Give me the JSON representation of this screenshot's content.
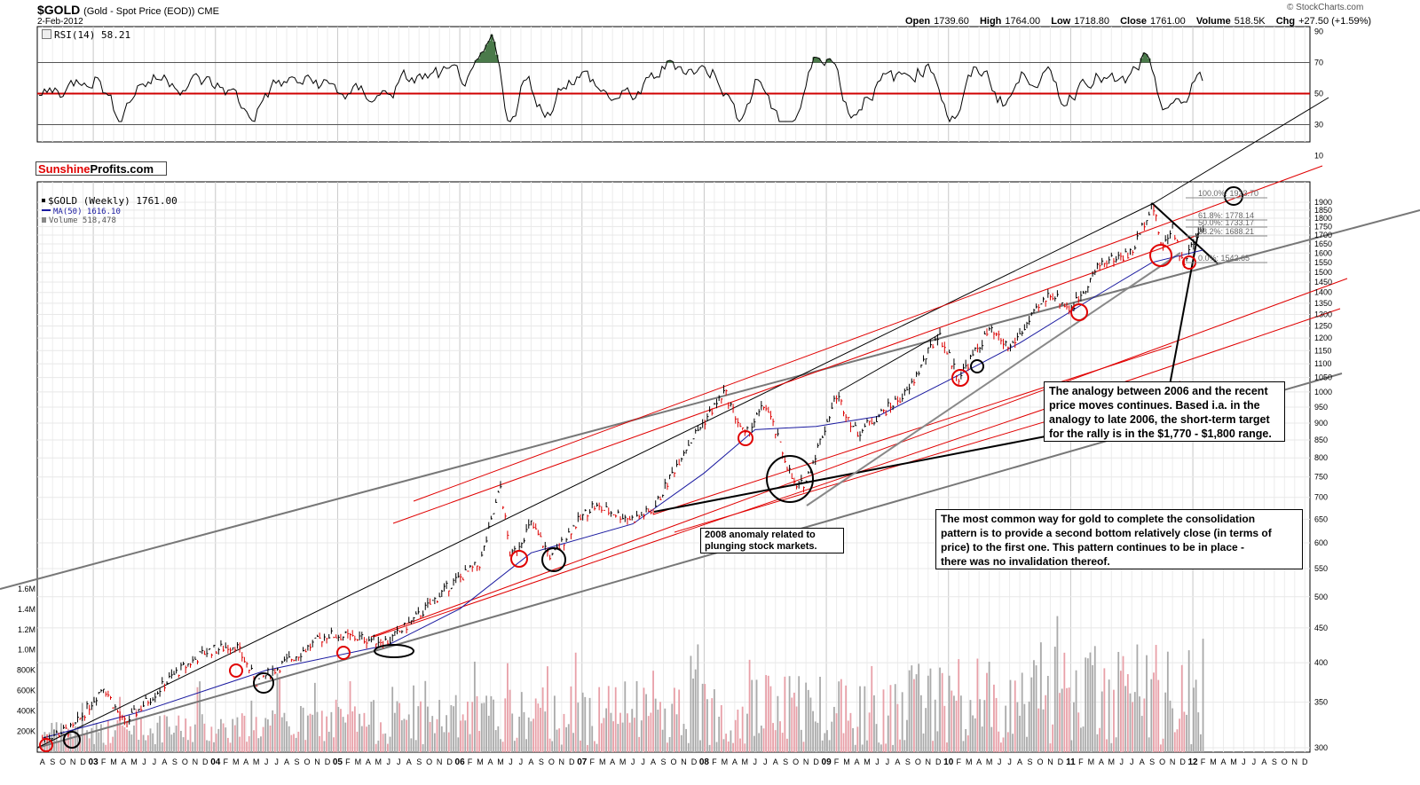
{
  "header": {
    "ticker": "$GOLD",
    "subtitle": "(Gold - Spot Price (EOD)) CME",
    "date": "2-Feb-2012",
    "quote": [
      {
        "label": "Open",
        "value": "1739.60"
      },
      {
        "label": "High",
        "value": "1764.00"
      },
      {
        "label": "Low",
        "value": "1718.80"
      },
      {
        "label": "Close",
        "value": "1761.00"
      },
      {
        "label": "Volume",
        "value": "518.5K"
      },
      {
        "label": "Chg",
        "value": "+27.50 (+1.59%)"
      }
    ],
    "brand": "© StockCharts.com"
  },
  "rsi": {
    "label": "RSI(14) 58.21",
    "axis_ticks": [
      "90",
      "70",
      "50",
      "30",
      "10"
    ]
  },
  "logo": {
    "part1": "Sunshine",
    "part2": "Profits.com"
  },
  "price_legend": {
    "items": [
      {
        "text": "$GOLD (Weekly) 1761.00",
        "color": "#000000"
      },
      {
        "text": "MA(50) 1616.10",
        "color": "#1a1aa0"
      },
      {
        "text": "Volume 518,478",
        "color": "#888888"
      }
    ]
  },
  "notes": {
    "analogy": "The analogy between 2006 and the recent\nprice moves continues. Based i.a. in the\nanalogy to late 2006, the short-term target\nfor the rally is in the $1,770 - $1,800 range.",
    "consolidation": "The most common way for gold to complete the consolidation\npattern is to provide a second bottom relatively close (in terms of\nprice) to the first one. This pattern continues to be in place -\nthere was no invalidation thereof.",
    "anomaly": "2008 anomaly related to\nplunging stock markets."
  },
  "fib_labels": [
    "100.0%: 1923.70",
    "61.8%: 1778.14",
    "50.0%: 1733.17",
    "38.2%: 1688.21",
    "0.0%: 1542.65"
  ],
  "colors": {
    "price": "#000000",
    "down_bar": "#dd0000",
    "ma": "#1a1aa0",
    "channel_red": "#e00000",
    "channel_grey": "#888888",
    "rsi_fill": "#4a7a4a",
    "vol_up": "#aaaaaa",
    "vol_down": "#e8a0a8"
  },
  "chart_data": {
    "type": "line",
    "title": "$GOLD (Gold - Spot Price (EOD)) CME",
    "y_axis_price_ticks": [
      1900,
      1850,
      1800,
      1750,
      1700,
      1650,
      1600,
      1550,
      1500,
      1450,
      1400,
      1350,
      1300,
      1250,
      1200,
      1150,
      1100,
      1050,
      1000,
      950,
      900,
      850,
      800,
      750,
      700,
      650,
      600,
      550,
      500,
      450,
      400,
      350,
      300
    ],
    "y_axis_volume_ticks": [
      "1.6M",
      "1.4M",
      "1.2M",
      "1.0M",
      "800K",
      "600K",
      "400K",
      "200K"
    ],
    "year_labels": [
      "03",
      "04",
      "05",
      "06",
      "07",
      "08",
      "09",
      "10",
      "11",
      "12"
    ],
    "x_month_labels": [
      "A",
      "S",
      "O",
      "N",
      "D",
      "03",
      "F",
      "M",
      "A",
      "M",
      "J",
      "J",
      "A",
      "S",
      "O",
      "N",
      "D",
      "04",
      "F",
      "M",
      "A",
      "M",
      "J",
      "J",
      "A",
      "S",
      "O",
      "N",
      "D",
      "05",
      "F",
      "M",
      "A",
      "M",
      "J",
      "J",
      "A",
      "S",
      "O",
      "N",
      "D",
      "06",
      "F",
      "M",
      "A",
      "M",
      "J",
      "J",
      "A",
      "S",
      "O",
      "N",
      "D",
      "07",
      "F",
      "M",
      "A",
      "M",
      "J",
      "J",
      "A",
      "S",
      "O",
      "N",
      "D",
      "08",
      "F",
      "M",
      "A",
      "M",
      "J",
      "J",
      "A",
      "S",
      "O",
      "N",
      "D",
      "09",
      "F",
      "M",
      "A",
      "M",
      "J",
      "J",
      "A",
      "S",
      "O",
      "N",
      "D",
      "10",
      "F",
      "M",
      "A",
      "M",
      "J",
      "J",
      "A",
      "S",
      "O",
      "N",
      "D",
      "11",
      "F",
      "M",
      "A",
      "M",
      "J",
      "J",
      "A",
      "S",
      "O",
      "N",
      "D",
      "12",
      "F",
      "M",
      "A",
      "M",
      "J",
      "J",
      "A",
      "S",
      "O",
      "N",
      "D"
    ],
    "ylim_price": [
      300,
      1900
    ],
    "scale": "log",
    "series": [
      {
        "name": "$GOLD (Weekly)",
        "points": [
          [
            "2002-08",
            310
          ],
          [
            "2002-11",
            320
          ],
          [
            "2003-02",
            370
          ],
          [
            "2003-04",
            325
          ],
          [
            "2003-09",
            385
          ],
          [
            "2003-12",
            415
          ],
          [
            "2004-03",
            425
          ],
          [
            "2004-05",
            375
          ],
          [
            "2004-12",
            440
          ],
          [
            "2005-03",
            435
          ],
          [
            "2005-06",
            430
          ],
          [
            "2005-09",
            470
          ],
          [
            "2005-12",
            520
          ],
          [
            "2006-03",
            560
          ],
          [
            "2006-05",
            725
          ],
          [
            "2006-06",
            570
          ],
          [
            "2006-08",
            640
          ],
          [
            "2006-10",
            570
          ],
          [
            "2006-12",
            630
          ],
          [
            "2007-02",
            680
          ],
          [
            "2007-06",
            650
          ],
          [
            "2007-08",
            670
          ],
          [
            "2007-11",
            820
          ],
          [
            "2008-03",
            1000
          ],
          [
            "2008-05",
            860
          ],
          [
            "2008-07",
            960
          ],
          [
            "2008-10",
            720
          ],
          [
            "2008-11",
            740
          ],
          [
            "2009-02",
            990
          ],
          [
            "2009-04",
            870
          ],
          [
            "2009-09",
            1000
          ],
          [
            "2009-12",
            1220
          ],
          [
            "2010-02",
            1050
          ],
          [
            "2010-05",
            1230
          ],
          [
            "2010-07",
            1160
          ],
          [
            "2010-11",
            1400
          ],
          [
            "2011-01",
            1320
          ],
          [
            "2011-04",
            1550
          ],
          [
            "2011-07",
            1600
          ],
          [
            "2011-09",
            1900
          ],
          [
            "2011-10",
            1620
          ],
          [
            "2011-11",
            1760
          ],
          [
            "2011-12",
            1540
          ],
          [
            "2012-02",
            1761
          ]
        ]
      },
      {
        "name": "MA(50)",
        "points": [
          [
            "2002-08",
            310
          ],
          [
            "2003-06",
            340
          ],
          [
            "2004-06",
            390
          ],
          [
            "2005-06",
            425
          ],
          [
            "2006-01",
            480
          ],
          [
            "2006-08",
            580
          ],
          [
            "2007-06",
            640
          ],
          [
            "2008-01",
            760
          ],
          [
            "2008-06",
            880
          ],
          [
            "2008-12",
            890
          ],
          [
            "2009-06",
            920
          ],
          [
            "2010-01",
            1040
          ],
          [
            "2010-08",
            1180
          ],
          [
            "2011-03",
            1370
          ],
          [
            "2011-09",
            1550
          ],
          [
            "2012-02",
            1616
          ]
        ]
      }
    ],
    "rsi_series": {
      "name": "RSI(14)",
      "ylim": [
        10,
        90
      ],
      "reference_levels": [
        70,
        50,
        30
      ],
      "last": 58.21
    },
    "grid": true,
    "legend_position": "top-left"
  }
}
